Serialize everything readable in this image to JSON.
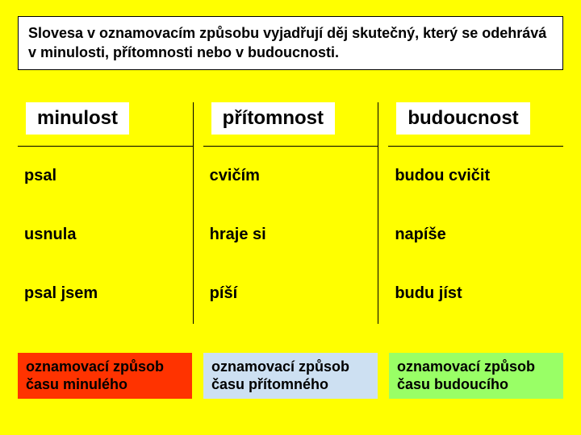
{
  "intro": "Slovesa v oznamovacím způsobu vyjadřují děj skutečný, který se odehrává v minulosti, přítomnosti nebo v budoucnosti.",
  "colors": {
    "page_bg": "#ffff00",
    "box_bg": "#ffffff",
    "border": "#000000",
    "footer_past_bg": "#ff3300",
    "footer_present_bg": "#cde0f2",
    "footer_future_bg": "#99ff66"
  },
  "typography": {
    "intro_fontsize": 18,
    "header_fontsize": 24,
    "cell_fontsize": 20,
    "footer_fontsize": 18,
    "font_family": "Arial",
    "weight": "bold"
  },
  "table": {
    "columns": [
      {
        "header": "minulost",
        "cells": [
          "psal",
          "usnula",
          "psal jsem"
        ]
      },
      {
        "header": "přítomnost",
        "cells": [
          "cvičím",
          "hraje si",
          "píší"
        ]
      },
      {
        "header": "budoucnost",
        "cells": [
          "budou cvičit",
          "napíše",
          "budu jíst"
        ]
      }
    ]
  },
  "footers": [
    {
      "line1": "oznamovací způsob",
      "line2": "času minulého"
    },
    {
      "line1": "oznamovací způsob",
      "line2": "času přítomného"
    },
    {
      "line1": "oznamovací způsob",
      "line2": "času budoucího"
    }
  ]
}
